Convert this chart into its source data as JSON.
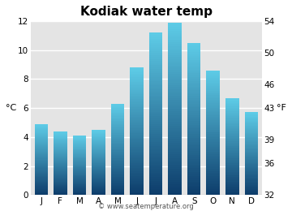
{
  "title": "Kodiak water temp",
  "months": [
    "J",
    "F",
    "M",
    "A",
    "M",
    "J",
    "J",
    "A",
    "S",
    "O",
    "N",
    "D"
  ],
  "values_c": [
    4.9,
    4.4,
    4.1,
    4.5,
    6.3,
    8.8,
    11.2,
    11.9,
    10.5,
    8.6,
    6.7,
    5.7
  ],
  "ylim_c": [
    0,
    12
  ],
  "yticks_c": [
    0,
    2,
    4,
    6,
    8,
    10,
    12
  ],
  "ylim_f": [
    32,
    54
  ],
  "yticks_f": [
    32,
    36,
    39,
    43,
    46,
    50,
    54
  ],
  "ylabel_left": "°C",
  "ylabel_right": "°F",
  "bar_color_bottom": "#0d3d6b",
  "bar_color_top": "#5ecde8",
  "bg_color": "#e4e4e4",
  "fig_color": "#ffffff",
  "watermark": "© www.seatemperature.org",
  "title_fontsize": 11,
  "tick_fontsize": 7.5,
  "label_fontsize": 8,
  "watermark_fontsize": 6
}
